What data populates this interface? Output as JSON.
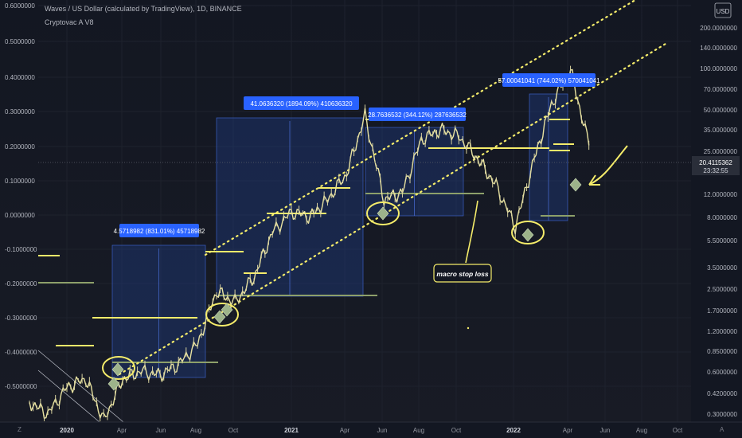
{
  "header": {
    "title": "Waves / US Dollar (calculated by TradingView), 1D, BINANCE",
    "indicator": "Cryptovac A V8",
    "currency": "USD"
  },
  "left_axis": [
    "0.6000000",
    "0.5000000",
    "0.4000000",
    "0.3000000",
    "0.2000000",
    "0.1000000",
    "0.0000000",
    "-0.1000000",
    "-0.2000000",
    "-0.3000000",
    "-0.4000000",
    "-0.5000000"
  ],
  "right_axis": [
    "200.0000000",
    "140.0000000",
    "100.0000000",
    "70.0000000",
    "50.0000000",
    "35.0000000",
    "25.0000000",
    "12.0000000",
    "8.0000000",
    "5.5000000",
    "3.5000000",
    "2.5000000",
    "1.7000000",
    "1.2000000",
    "0.8500000",
    "0.6000000",
    "0.4200000",
    "0.3000000"
  ],
  "time_axis": [
    "2020",
    "Apr",
    "Jun",
    "Aug",
    "Oct",
    "2021",
    "Apr",
    "Jun",
    "Aug",
    "Oct",
    "2022",
    "Apr",
    "Jun",
    "Aug",
    "Oct"
  ],
  "corner_left": "Z",
  "corner_right": "A",
  "price_label": {
    "price": "20.4115362",
    "countdown": "23:32:55"
  },
  "measure_labels": [
    "4.5718982 (831.01%) 45718982",
    "41.0636320 (1894.09%) 410636320",
    "28.7636532 (344.12%) 287636532",
    "57.00041041 (744.02%) 570041041"
  ],
  "annotation": "macro stop loss",
  "colors": {
    "background": "#131722",
    "yellow": "#f5ec6a",
    "box": "#1d3a7a",
    "label": "#2962ff",
    "green": "#8da06a"
  },
  "chart_data": {
    "type": "line",
    "title": "Waves / US Dollar (calculated by TradingView), 1D, BINANCE",
    "scale": "log",
    "ylim": [
      0.3,
      200
    ],
    "x": [
      "2019-11",
      "2019-12",
      "2020-01",
      "2020-02",
      "2020-03",
      "2020-04",
      "2020-05",
      "2020-06",
      "2020-07",
      "2020-08",
      "2020-09",
      "2020-10",
      "2020-11",
      "2020-12",
      "2021-01",
      "2021-02",
      "2021-03",
      "2021-04",
      "2021-05",
      "2021-06",
      "2021-07",
      "2021-08",
      "2021-09",
      "2021-10",
      "2021-11",
      "2021-12",
      "2022-01",
      "2022-02",
      "2022-03",
      "2022-04",
      "2022-05"
    ],
    "series": [
      {
        "values": [
          0.7,
          0.6,
          0.85,
          0.95,
          0.55,
          0.95,
          1.05,
          1.0,
          1.15,
          1.5,
          3.0,
          2.6,
          3.6,
          6.5,
          8.5,
          8.0,
          10.0,
          14.0,
          30.0,
          10.0,
          11.0,
          22.0,
          25.0,
          23.0,
          17.0,
          12.0,
          7.0,
          17.0,
          35.0,
          55.0,
          20.4
        ]
      }
    ]
  }
}
